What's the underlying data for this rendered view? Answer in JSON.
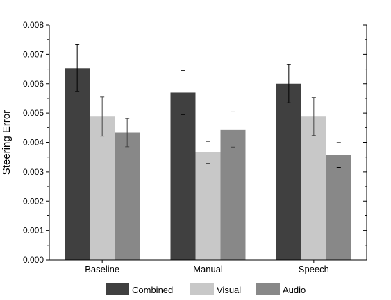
{
  "chart_data": {
    "type": "bar",
    "title": "",
    "xlabel": "",
    "ylabel": "Steering Error",
    "ylim": [
      0,
      0.008
    ],
    "yticks": [
      "0.000",
      "0.001",
      "0.002",
      "0.003",
      "0.004",
      "0.005",
      "0.006",
      "0.007",
      "0.008"
    ],
    "categories": [
      "Baseline",
      "Manual",
      "Speech"
    ],
    "series": [
      {
        "name": "Combined",
        "color": "#404040",
        "values": [
          0.00653,
          0.0057,
          0.006
        ],
        "errors": [
          0.0008,
          0.00075,
          0.00065
        ]
      },
      {
        "name": "Visual",
        "color": "#c8c8c8",
        "values": [
          0.00488,
          0.00366,
          0.00488
        ],
        "errors": [
          0.00067,
          0.00037,
          0.00065
        ]
      },
      {
        "name": "Audio",
        "color": "#888888",
        "values": [
          0.00433,
          0.00444,
          0.00357
        ],
        "errors": [
          0.00048,
          0.0006,
          0.00042
        ]
      }
    ],
    "grid": false,
    "legend": "bottom"
  }
}
